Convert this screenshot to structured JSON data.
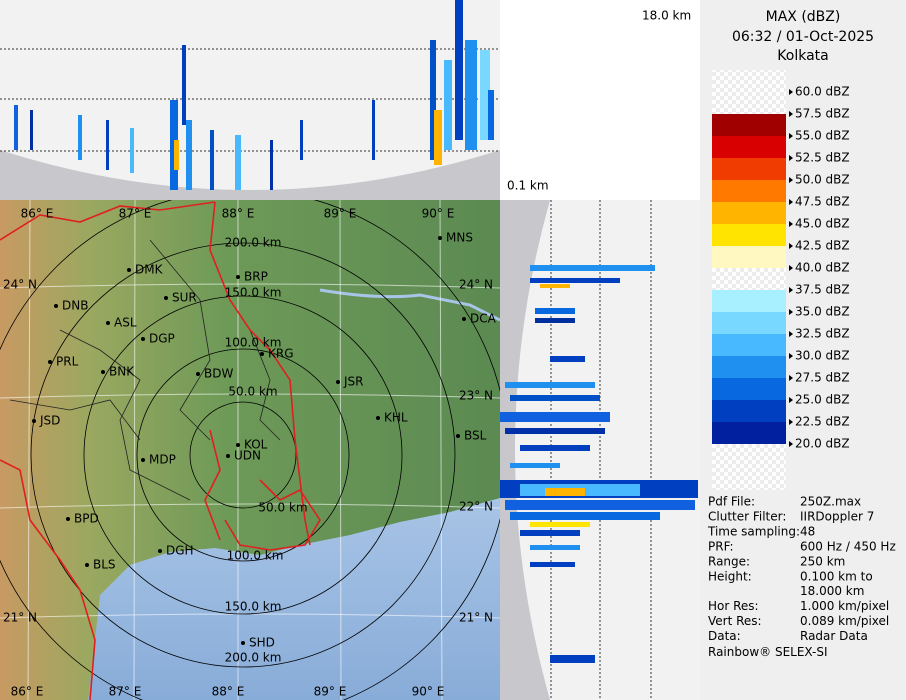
{
  "header": {
    "title": "MAX (dBZ)",
    "time": "06:32 / 01-Oct-2025",
    "station": "Kolkata"
  },
  "profile": {
    "top_label": "18.0 km",
    "bottom_label": "0.1 km"
  },
  "legend": [
    {
      "label": "60.0 dBZ",
      "color": "#ffffff"
    },
    {
      "label": "57.5 dBZ",
      "color": "#ffffff"
    },
    {
      "label": "55.0 dBZ",
      "color": "#a00000"
    },
    {
      "label": "52.5 dBZ",
      "color": "#d80000"
    },
    {
      "label": "50.0 dBZ",
      "color": "#f03c00"
    },
    {
      "label": "47.5 dBZ",
      "color": "#ff7800"
    },
    {
      "label": "45.0 dBZ",
      "color": "#ffb400"
    },
    {
      "label": "42.5 dBZ",
      "color": "#ffe400"
    },
    {
      "label": "40.0 dBZ",
      "color": "#fff8c0"
    },
    {
      "label": "37.5 dBZ",
      "color": "#ffffff"
    },
    {
      "label": "35.0 dBZ",
      "color": "#a8f0ff"
    },
    {
      "label": "32.5 dBZ",
      "color": "#78d8ff"
    },
    {
      "label": "30.0 dBZ",
      "color": "#48b8ff"
    },
    {
      "label": "27.5 dBZ",
      "color": "#2090f0"
    },
    {
      "label": "25.0 dBZ",
      "color": "#0868e0"
    },
    {
      "label": "22.5 dBZ",
      "color": "#0040c0"
    },
    {
      "label": "20.0 dBZ",
      "color": "#0020a0"
    }
  ],
  "map": {
    "lon_labels": [
      "86° E",
      "87° E",
      "88° E",
      "89° E",
      "90° E"
    ],
    "lat_labels": [
      "24° N",
      "23° N",
      "22° N",
      "21° N"
    ],
    "range_labels": [
      "200.0 km",
      "150.0 km",
      "100.0 km",
      "50.0 km",
      "50.0 km",
      "100.0 km",
      "150.0 km",
      "200.0 km"
    ],
    "cities": [
      "MNS",
      "DMK",
      "BRP",
      "SUR",
      "DNB",
      "ASL",
      "DCA",
      "DGP",
      "KRG",
      "PRL",
      "BNK",
      "BDW",
      "JSR",
      "KHL",
      "JSD",
      "BSL",
      "KOL",
      "MDP",
      "UDN",
      "BPD",
      "DGH",
      "BLS",
      "SHD"
    ]
  },
  "info": {
    "rows": [
      [
        "Pdf File:",
        "250Z.max"
      ],
      [
        "Clutter Filter:",
        "IIRDoppler 7"
      ],
      [
        "Time sampling:48"
      ],
      [
        "PRF:",
        "600 Hz / 450 Hz"
      ],
      [
        "Range:",
        "250 km"
      ],
      [
        "Height:",
        "0.100 km to",
        "18.000 km"
      ],
      [
        "Hor Res:",
        "1.000 km/pixel"
      ],
      [
        "Vert Res:",
        "0.089 km/pixel"
      ],
      [
        "Data:",
        "Radar Data"
      ]
    ],
    "footer": "Rainbow® SELEX-SI"
  }
}
